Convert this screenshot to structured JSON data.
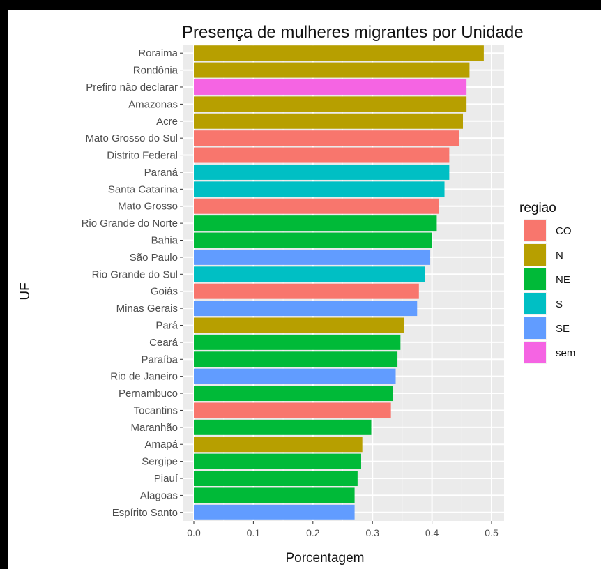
{
  "chart_data": {
    "type": "bar",
    "orientation": "horizontal",
    "title": "Presença de mulheres migrantes por Unidade",
    "xlabel": "Porcentagem",
    "ylabel": "UF",
    "xlim": [
      0,
      0.5
    ],
    "xticks": [
      "0.0",
      "0.1",
      "0.2",
      "0.3",
      "0.4",
      "0.5"
    ],
    "xtick_values": [
      0,
      0.1,
      0.2,
      0.3,
      0.4,
      0.5
    ],
    "grid": true,
    "legend": {
      "title": "regiao",
      "placement": "right",
      "entries": [
        {
          "label": "CO",
          "color": "#F8766D"
        },
        {
          "label": "N",
          "color": "#B79F00"
        },
        {
          "label": "NE",
          "color": "#00BA38"
        },
        {
          "label": "S",
          "color": "#00BFC4"
        },
        {
          "label": "SE",
          "color": "#619CFF"
        },
        {
          "label": "sem",
          "color": "#F564E3"
        }
      ]
    },
    "bars": [
      {
        "category": "Roraima",
        "value": 0.487,
        "regiao": "N"
      },
      {
        "category": "Rondônia",
        "value": 0.463,
        "regiao": "N"
      },
      {
        "category": "Prefiro não declarar",
        "value": 0.458,
        "regiao": "sem"
      },
      {
        "category": "Amazonas",
        "value": 0.458,
        "regiao": "N"
      },
      {
        "category": "Acre",
        "value": 0.452,
        "regiao": "N"
      },
      {
        "category": "Mato Grosso do Sul",
        "value": 0.445,
        "regiao": "CO"
      },
      {
        "category": "Distrito Federal",
        "value": 0.429,
        "regiao": "CO"
      },
      {
        "category": "Paraná",
        "value": 0.429,
        "regiao": "S"
      },
      {
        "category": "Santa Catarina",
        "value": 0.421,
        "regiao": "S"
      },
      {
        "category": "Mato Grosso",
        "value": 0.412,
        "regiao": "CO"
      },
      {
        "category": "Rio Grande do Norte",
        "value": 0.408,
        "regiao": "NE"
      },
      {
        "category": "Bahia",
        "value": 0.4,
        "regiao": "NE"
      },
      {
        "category": "São Paulo",
        "value": 0.397,
        "regiao": "SE"
      },
      {
        "category": "Rio Grande do Sul",
        "value": 0.388,
        "regiao": "S"
      },
      {
        "category": "Goiás",
        "value": 0.378,
        "regiao": "CO"
      },
      {
        "category": "Minas Gerais",
        "value": 0.375,
        "regiao": "SE"
      },
      {
        "category": "Pará",
        "value": 0.353,
        "regiao": "N"
      },
      {
        "category": "Ceará",
        "value": 0.347,
        "regiao": "NE"
      },
      {
        "category": "Paraíba",
        "value": 0.342,
        "regiao": "NE"
      },
      {
        "category": "Rio de Janeiro",
        "value": 0.339,
        "regiao": "SE"
      },
      {
        "category": "Pernambuco",
        "value": 0.334,
        "regiao": "NE"
      },
      {
        "category": "Tocantins",
        "value": 0.331,
        "regiao": "CO"
      },
      {
        "category": "Maranhão",
        "value": 0.298,
        "regiao": "NE"
      },
      {
        "category": "Amapá",
        "value": 0.283,
        "regiao": "N"
      },
      {
        "category": "Sergipe",
        "value": 0.281,
        "regiao": "NE"
      },
      {
        "category": "Piauí",
        "value": 0.275,
        "regiao": "NE"
      },
      {
        "category": "Alagoas",
        "value": 0.27,
        "regiao": "NE"
      },
      {
        "category": "Espírito Santo",
        "value": 0.27,
        "regiao": "SE"
      }
    ]
  }
}
